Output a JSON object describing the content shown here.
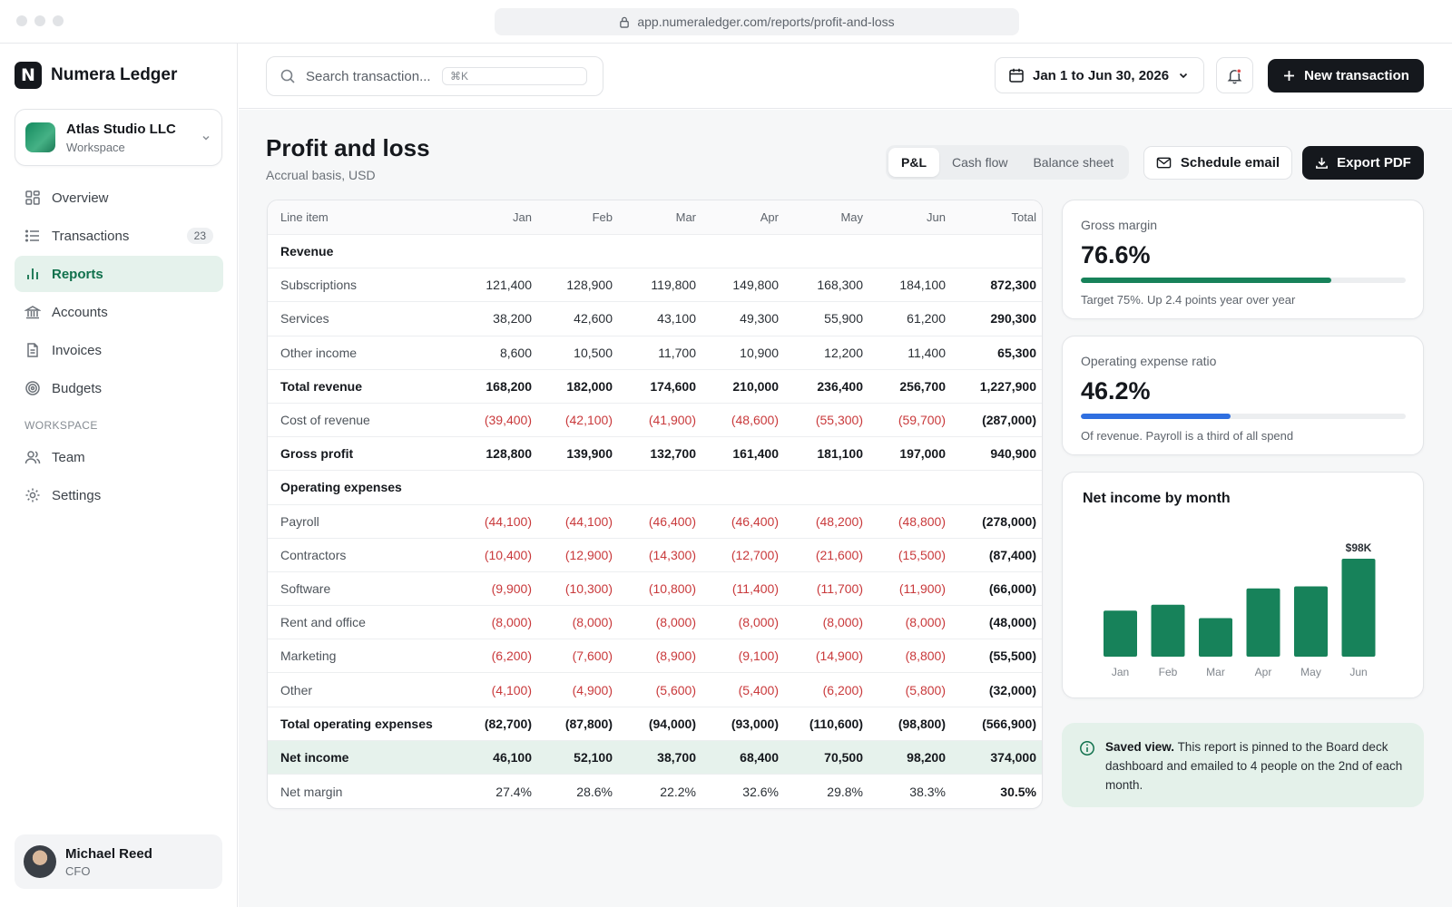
{
  "browser": {
    "url": "app.numeraledger.com/reports/profit-and-loss"
  },
  "brand": {
    "logo_letter": "N",
    "name": "Numera Ledger"
  },
  "workspace": {
    "name": "Atlas Studio LLC",
    "sub": "Workspace"
  },
  "nav": {
    "items": [
      {
        "label": "Overview",
        "icon": "grid-icon"
      },
      {
        "label": "Transactions",
        "icon": "list-icon",
        "badge": "23"
      },
      {
        "label": "Reports",
        "icon": "bar-chart-icon",
        "active": true
      },
      {
        "label": "Accounts",
        "icon": "bank-icon"
      },
      {
        "label": "Invoices",
        "icon": "document-icon"
      },
      {
        "label": "Budgets",
        "icon": "target-icon"
      }
    ],
    "section_label": "WORKSPACE",
    "section_items": [
      {
        "label": "Team",
        "icon": "users-icon"
      },
      {
        "label": "Settings",
        "icon": "gear-icon"
      }
    ]
  },
  "user": {
    "name": "Michael Reed",
    "role": "CFO"
  },
  "topbar": {
    "search_placeholder": "Search transaction...",
    "search_shortcut": "⌘K",
    "date_range": "Jan 1 to Jun 30, 2026",
    "new_transaction_label": "New transaction"
  },
  "page": {
    "title": "Profit and loss",
    "subtitle": "Accrual basis, USD",
    "tabs": [
      "P&L",
      "Cash flow",
      "Balance sheet"
    ],
    "active_tab": "P&L",
    "schedule_label": "Schedule email",
    "export_label": "Export PDF"
  },
  "table": {
    "columns": [
      "Line item",
      "Jan",
      "Feb",
      "Mar",
      "Apr",
      "May",
      "Jun",
      "Total"
    ],
    "rows": [
      {
        "type": "section",
        "label": "Revenue"
      },
      {
        "type": "line",
        "label": "Subscriptions",
        "values": [
          "121,400",
          "128,900",
          "119,800",
          "149,800",
          "168,300",
          "184,100",
          "872,300"
        ]
      },
      {
        "type": "line",
        "label": "Services",
        "values": [
          "38,200",
          "42,600",
          "43,100",
          "49,300",
          "55,900",
          "61,200",
          "290,300"
        ]
      },
      {
        "type": "line",
        "label": "Other income",
        "values": [
          "8,600",
          "10,500",
          "11,700",
          "10,900",
          "12,200",
          "11,400",
          "65,300"
        ]
      },
      {
        "type": "bold",
        "label": "Total revenue",
        "values": [
          "168,200",
          "182,000",
          "174,600",
          "210,000",
          "236,400",
          "256,700",
          "1,227,900"
        ]
      },
      {
        "type": "neg",
        "label": "Cost of revenue",
        "values": [
          "(39,400)",
          "(42,100)",
          "(41,900)",
          "(48,600)",
          "(55,300)",
          "(59,700)",
          "(287,000)"
        ]
      },
      {
        "type": "bold",
        "label": "Gross profit",
        "values": [
          "128,800",
          "139,900",
          "132,700",
          "161,400",
          "181,100",
          "197,000",
          "940,900"
        ]
      },
      {
        "type": "section",
        "label": "Operating expenses"
      },
      {
        "type": "neg",
        "label": "Payroll",
        "values": [
          "(44,100)",
          "(44,100)",
          "(46,400)",
          "(46,400)",
          "(48,200)",
          "(48,800)",
          "(278,000)"
        ]
      },
      {
        "type": "neg",
        "label": "Contractors",
        "values": [
          "(10,400)",
          "(12,900)",
          "(14,300)",
          "(12,700)",
          "(21,600)",
          "(15,500)",
          "(87,400)"
        ]
      },
      {
        "type": "neg",
        "label": "Software",
        "values": [
          "(9,900)",
          "(10,300)",
          "(10,800)",
          "(11,400)",
          "(11,700)",
          "(11,900)",
          "(66,000)"
        ]
      },
      {
        "type": "neg",
        "label": "Rent and office",
        "values": [
          "(8,000)",
          "(8,000)",
          "(8,000)",
          "(8,000)",
          "(8,000)",
          "(8,000)",
          "(48,000)"
        ]
      },
      {
        "type": "neg",
        "label": "Marketing",
        "values": [
          "(6,200)",
          "(7,600)",
          "(8,900)",
          "(9,100)",
          "(14,900)",
          "(8,800)",
          "(55,500)"
        ]
      },
      {
        "type": "neg",
        "label": "Other",
        "values": [
          "(4,100)",
          "(4,900)",
          "(5,600)",
          "(5,400)",
          "(6,200)",
          "(5,800)",
          "(32,000)"
        ]
      },
      {
        "type": "bold",
        "label": "Total operating expenses",
        "values": [
          "(82,700)",
          "(87,800)",
          "(94,000)",
          "(93,000)",
          "(110,600)",
          "(98,800)",
          "(566,900)"
        ]
      },
      {
        "type": "net",
        "label": "Net income",
        "values": [
          "46,100",
          "52,100",
          "38,700",
          "68,400",
          "70,500",
          "98,200",
          "374,000"
        ]
      },
      {
        "type": "line",
        "label": "Net margin",
        "values": [
          "27.4%",
          "28.6%",
          "22.2%",
          "32.6%",
          "29.8%",
          "38.3%",
          "30.5%"
        ]
      }
    ]
  },
  "kpis": [
    {
      "label": "Gross margin",
      "value": "76.6%",
      "progress_fraction": 0.77,
      "color": "#17825a",
      "note": "Target 75%. Up 2.4 points year over year"
    },
    {
      "label": "Operating expense ratio",
      "value": "46.2%",
      "progress_fraction": 0.46,
      "color": "#2f6fe0",
      "note": "Of revenue. Payroll is a third of all spend"
    }
  ],
  "chart_data": {
    "type": "bar",
    "title": "Net income by month",
    "categories": [
      "Jan",
      "Feb",
      "Mar",
      "Apr",
      "May",
      "Jun"
    ],
    "values": [
      46.1,
      52.1,
      38.7,
      68.4,
      70.5,
      98.2
    ],
    "unit": "$K",
    "data_labels": [
      {
        "category": "Jun",
        "text": "$98K"
      }
    ],
    "ylim": [
      0,
      98.2
    ],
    "grid": false,
    "color": "#17825a"
  },
  "info": {
    "title": "Saved view.",
    "text": "This report is pinned to the Board deck dashboard and emailed to 4 people on the 2nd of each month."
  }
}
